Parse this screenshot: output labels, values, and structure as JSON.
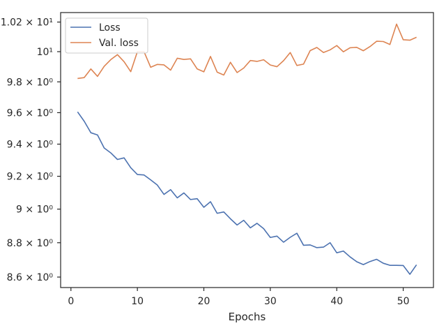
{
  "chart_data": {
    "type": "line",
    "title": "",
    "xlabel": "Epochs",
    "ylabel": "",
    "yscale": "log",
    "xlim": [
      -1.55,
      54.55
    ],
    "ylim": [
      8.54,
      10.265
    ],
    "grid": false,
    "legend_position": "top-left",
    "xticks": [
      0,
      10,
      20,
      30,
      40,
      50
    ],
    "xtick_labels": [
      "0",
      "10",
      "20",
      "30",
      "40",
      "50"
    ],
    "yticks": [
      8.6,
      8.8,
      9.0,
      9.2,
      9.4,
      9.6,
      9.8,
      10.0,
      10.2
    ],
    "ytick_labels": [
      "8.6 × 10⁰",
      "8.8 × 10⁰",
      "9 × 10⁰",
      "9.2 × 10⁰",
      "9.4 × 10⁰",
      "9.6 × 10⁰",
      "9.8 × 10⁰",
      "10¹",
      "1.02 × 10¹"
    ],
    "x": [
      1,
      2,
      3,
      4,
      5,
      6,
      7,
      8,
      9,
      10,
      11,
      12,
      13,
      14,
      15,
      16,
      17,
      18,
      19,
      20,
      21,
      22,
      23,
      24,
      25,
      26,
      27,
      28,
      29,
      30,
      31,
      32,
      33,
      34,
      35,
      36,
      37,
      38,
      39,
      40,
      41,
      42,
      43,
      44,
      45,
      46,
      47,
      48,
      49,
      50,
      51,
      52
    ],
    "series": [
      {
        "name": "Loss",
        "color": "#4c72b0",
        "values": [
          9.605,
          9.545,
          9.472,
          9.458,
          9.376,
          9.345,
          9.304,
          9.314,
          9.253,
          9.211,
          9.208,
          9.178,
          9.146,
          9.089,
          9.118,
          9.068,
          9.098,
          9.058,
          9.063,
          9.011,
          9.045,
          8.975,
          8.983,
          8.942,
          8.905,
          8.933,
          8.888,
          8.915,
          8.883,
          8.831,
          8.839,
          8.803,
          8.832,
          8.856,
          8.785,
          8.787,
          8.771,
          8.774,
          8.8,
          8.741,
          8.751,
          8.717,
          8.689,
          8.672,
          8.69,
          8.703,
          8.68,
          8.668,
          8.668,
          8.667,
          8.616,
          8.671
        ]
      },
      {
        "name": "Val. loss",
        "color": "#dd8452",
        "values": [
          9.822,
          9.828,
          9.885,
          9.836,
          9.902,
          9.947,
          9.98,
          9.933,
          9.867,
          10.0,
          10.0,
          9.896,
          9.915,
          9.912,
          9.877,
          9.956,
          9.948,
          9.952,
          9.885,
          9.866,
          9.968,
          9.864,
          9.845,
          9.929,
          9.861,
          9.891,
          9.941,
          9.935,
          9.946,
          9.911,
          9.9,
          9.94,
          9.994,
          9.908,
          9.917,
          10.007,
          10.028,
          9.994,
          10.012,
          10.041,
          9.999,
          10.026,
          10.029,
          10.006,
          10.034,
          10.07,
          10.068,
          10.048,
          10.186,
          10.08,
          10.077,
          10.097
        ]
      }
    ]
  }
}
